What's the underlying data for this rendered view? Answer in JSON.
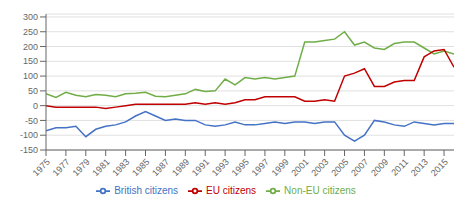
{
  "chart_data": {
    "type": "line",
    "x": [
      1975,
      1976,
      1977,
      1978,
      1979,
      1980,
      1981,
      1982,
      1983,
      1984,
      1985,
      1986,
      1987,
      1988,
      1989,
      1990,
      1991,
      1992,
      1993,
      1994,
      1995,
      1996,
      1997,
      1998,
      1999,
      2000,
      2001,
      2002,
      2003,
      2004,
      2005,
      2006,
      2007,
      2008,
      2009,
      2010,
      2011,
      2012,
      2013,
      2014,
      2015,
      2016
    ],
    "series": [
      {
        "name": "Non-EU citizens",
        "color": "#70AD47",
        "values": [
          40,
          28,
          45,
          35,
          30,
          38,
          35,
          30,
          40,
          42,
          45,
          32,
          30,
          35,
          40,
          55,
          48,
          50,
          90,
          70,
          95,
          90,
          95,
          90,
          95,
          100,
          215,
          215,
          220,
          225,
          250,
          205,
          215,
          195,
          190,
          210,
          215,
          215,
          195,
          175,
          185,
          175
        ]
      },
      {
        "name": "British citizens",
        "color": "#4472C4",
        "values": [
          -85,
          -75,
          -75,
          -70,
          -105,
          -80,
          -70,
          -65,
          -55,
          -35,
          -20,
          -35,
          -50,
          -45,
          -50,
          -50,
          -65,
          -70,
          -65,
          -55,
          -65,
          -65,
          -60,
          -55,
          -60,
          -55,
          -55,
          -60,
          -55,
          -55,
          -100,
          -120,
          -100,
          -50,
          -55,
          -65,
          -70,
          -55,
          -60,
          -65,
          -60,
          -60
        ]
      },
      {
        "name": "EU citizens",
        "color": "#C00000",
        "values": [
          0,
          -5,
          -5,
          -5,
          -5,
          -5,
          -10,
          -5,
          0,
          5,
          5,
          5,
          5,
          5,
          5,
          10,
          5,
          10,
          5,
          10,
          20,
          20,
          30,
          30,
          30,
          30,
          15,
          15,
          20,
          15,
          100,
          110,
          125,
          65,
          65,
          80,
          85,
          85,
          165,
          185,
          190,
          130
        ]
      }
    ],
    "xlim": [
      1975,
      2016
    ],
    "xticks": [
      1975,
      1977,
      1979,
      1981,
      1983,
      1985,
      1987,
      1989,
      1991,
      1993,
      1995,
      1997,
      1999,
      2001,
      2003,
      2005,
      2007,
      2009,
      2011,
      2013,
      2015
    ],
    "ylim": [
      -150,
      310
    ],
    "yticks": [
      -150,
      -100,
      -50,
      0,
      50,
      100,
      150,
      200,
      250,
      300
    ],
    "grid": true,
    "legend": "bottom"
  }
}
